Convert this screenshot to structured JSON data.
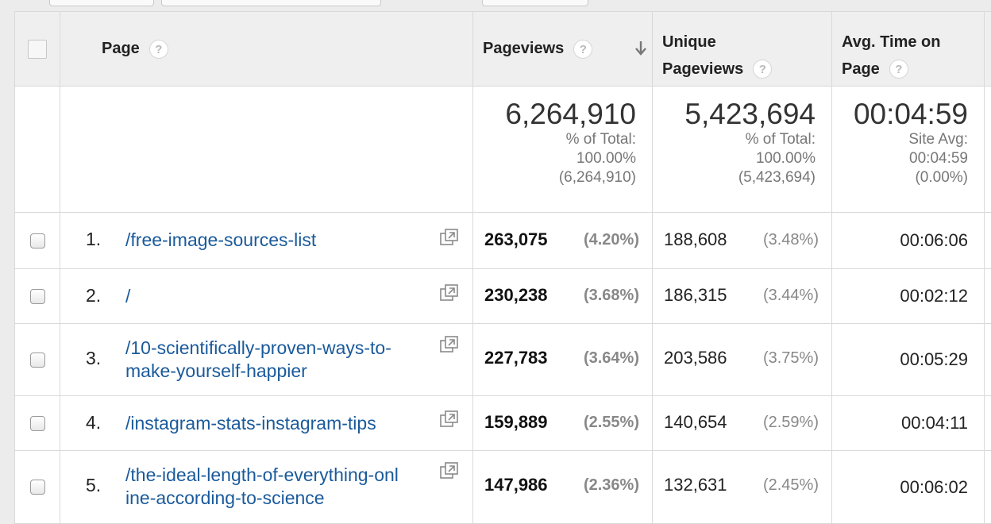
{
  "columns": {
    "page": "Page",
    "pageviews": "Pageviews",
    "unique_line1": "Unique",
    "unique_line2": "Pageviews",
    "avg_line1": "Avg. Time on",
    "avg_line2": "Page",
    "help_glyph": "?"
  },
  "summary": {
    "pageviews": {
      "value": "6,264,910",
      "label": "% of Total:",
      "pct": "100.00%",
      "total": "(6,264,910)"
    },
    "unique": {
      "value": "5,423,694",
      "label": "% of Total:",
      "pct": "100.00%",
      "total": "(5,423,694)"
    },
    "avg": {
      "value": "00:04:59",
      "label": "Site Avg:",
      "site": "00:04:59",
      "pct": "(0.00%)"
    }
  },
  "rows": [
    {
      "rank": "1.",
      "path_lines": [
        "/free-image-sources-list"
      ],
      "pageviews": "263,075",
      "pv_pct": "(4.20%)",
      "unique": "188,608",
      "up_pct": "(3.48%)",
      "time": "00:06:06"
    },
    {
      "rank": "2.",
      "path_lines": [
        "/"
      ],
      "pageviews": "230,238",
      "pv_pct": "(3.68%)",
      "unique": "186,315",
      "up_pct": "(3.44%)",
      "time": "00:02:12"
    },
    {
      "rank": "3.",
      "path_lines": [
        "/10-scientifically-proven-ways-to-",
        "make-yourself-happier"
      ],
      "pageviews": "227,783",
      "pv_pct": "(3.64%)",
      "unique": "203,586",
      "up_pct": "(3.75%)",
      "time": "00:05:29"
    },
    {
      "rank": "4.",
      "path_lines": [
        "/instagram-stats-instagram-tips"
      ],
      "pageviews": "159,889",
      "pv_pct": "(2.55%)",
      "unique": "140,654",
      "up_pct": "(2.59%)",
      "time": "00:04:11"
    },
    {
      "rank": "5.",
      "path_lines": [
        "/the-ideal-length-of-everything-onl",
        "ine-according-to-science"
      ],
      "pageviews": "147,986",
      "pv_pct": "(2.36%)",
      "unique": "132,631",
      "up_pct": "(2.45%)",
      "time": "00:06:02"
    }
  ]
}
